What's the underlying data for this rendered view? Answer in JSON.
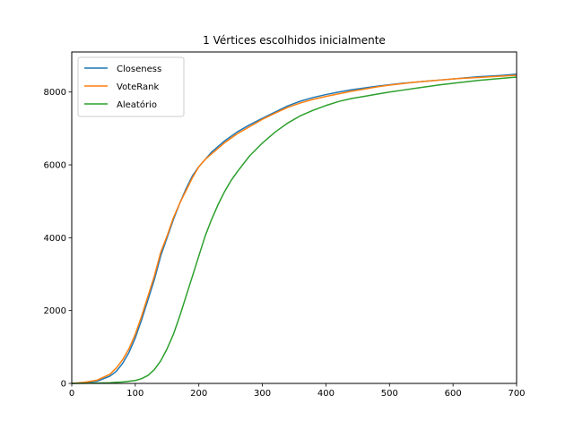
{
  "chart_data": {
    "type": "line",
    "title": "1 Vértices escolhidos inicialmente",
    "xlabel": "",
    "ylabel": "",
    "xlim": [
      0,
      700
    ],
    "ylim": [
      0,
      9100
    ],
    "xticks": [
      0,
      100,
      200,
      300,
      400,
      500,
      600,
      700
    ],
    "yticks": [
      0,
      2000,
      4000,
      6000,
      8000
    ],
    "grid": false,
    "legend_position": "top-left",
    "series": [
      {
        "name": "Closeness",
        "color": "#1f77b4",
        "x": [
          0,
          20,
          40,
          60,
          70,
          80,
          90,
          100,
          110,
          120,
          130,
          140,
          150,
          160,
          170,
          180,
          190,
          200,
          210,
          220,
          240,
          260,
          280,
          300,
          320,
          340,
          360,
          380,
          400,
          420,
          440,
          460,
          480,
          500,
          520,
          540,
          560,
          580,
          600,
          620,
          640,
          660,
          680,
          700
        ],
        "y": [
          0,
          20,
          60,
          200,
          330,
          550,
          850,
          1250,
          1750,
          2300,
          2850,
          3500,
          4000,
          4500,
          4950,
          5350,
          5700,
          5950,
          6150,
          6350,
          6650,
          6900,
          7100,
          7280,
          7450,
          7620,
          7750,
          7850,
          7930,
          8000,
          8060,
          8110,
          8160,
          8200,
          8240,
          8270,
          8300,
          8330,
          8360,
          8390,
          8420,
          8440,
          8460,
          8490
        ]
      },
      {
        "name": "VoteRank",
        "color": "#ff7f0e",
        "x": [
          0,
          20,
          40,
          60,
          70,
          80,
          90,
          100,
          110,
          120,
          130,
          140,
          150,
          160,
          170,
          180,
          190,
          200,
          210,
          220,
          240,
          260,
          280,
          300,
          320,
          340,
          360,
          380,
          400,
          420,
          440,
          460,
          480,
          500,
          520,
          540,
          560,
          580,
          600,
          620,
          640,
          660,
          680,
          700
        ],
        "y": [
          0,
          30,
          90,
          250,
          420,
          650,
          950,
          1350,
          1850,
          2400,
          2950,
          3600,
          4050,
          4550,
          4950,
          5300,
          5650,
          5950,
          6150,
          6300,
          6600,
          6850,
          7050,
          7250,
          7420,
          7580,
          7700,
          7800,
          7880,
          7950,
          8020,
          8080,
          8140,
          8190,
          8230,
          8270,
          8300,
          8330,
          8360,
          8380,
          8400,
          8420,
          8440,
          8460
        ]
      },
      {
        "name": "Aleatório",
        "color": "#2ca02c",
        "x": [
          0,
          40,
          60,
          80,
          100,
          110,
          120,
          130,
          140,
          150,
          160,
          170,
          180,
          190,
          200,
          210,
          220,
          230,
          240,
          250,
          260,
          280,
          300,
          320,
          340,
          360,
          380,
          400,
          420,
          440,
          460,
          480,
          500,
          520,
          540,
          560,
          580,
          600,
          620,
          640,
          660,
          680,
          700
        ],
        "y": [
          0,
          10,
          20,
          40,
          80,
          130,
          220,
          380,
          620,
          950,
          1350,
          1850,
          2400,
          2950,
          3500,
          4050,
          4500,
          4900,
          5250,
          5550,
          5800,
          6250,
          6600,
          6900,
          7150,
          7350,
          7500,
          7630,
          7740,
          7820,
          7880,
          7940,
          8000,
          8050,
          8100,
          8150,
          8200,
          8240,
          8280,
          8320,
          8350,
          8380,
          8410
        ]
      }
    ]
  }
}
